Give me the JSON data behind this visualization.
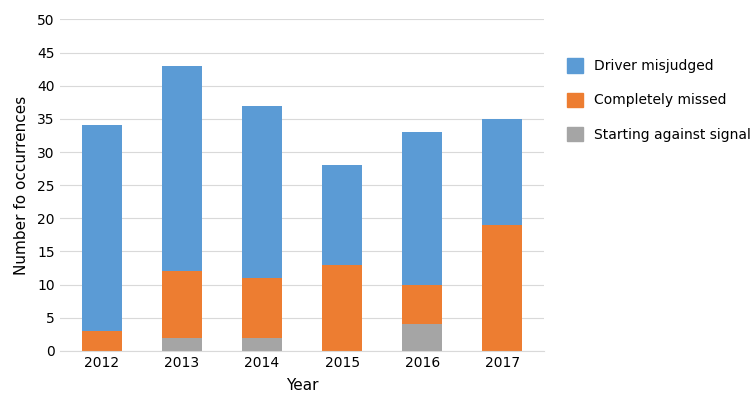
{
  "years": [
    "2012",
    "2013",
    "2014",
    "2015",
    "2016",
    "2017"
  ],
  "starting_against_signal": [
    0,
    2,
    2,
    0,
    4,
    0
  ],
  "completely_missed": [
    3,
    10,
    9,
    13,
    6,
    19
  ],
  "driver_misjudged": [
    31,
    31,
    26,
    15,
    23,
    16
  ],
  "color_driver_misjudged": "#5B9BD5",
  "color_completely_missed": "#ED7D31",
  "color_starting_against_signal": "#A5A5A5",
  "xlabel": "Year",
  "ylabel": "Number fo occurrences",
  "ylim": [
    0,
    50
  ],
  "yticks": [
    0,
    5,
    10,
    15,
    20,
    25,
    30,
    35,
    40,
    45,
    50
  ],
  "legend_labels": [
    "Driver misjudged",
    "Completely missed",
    "Starting against signal"
  ],
  "bar_width": 0.5,
  "background_color": "#FFFFFF",
  "grid_color": "#D9D9D9"
}
